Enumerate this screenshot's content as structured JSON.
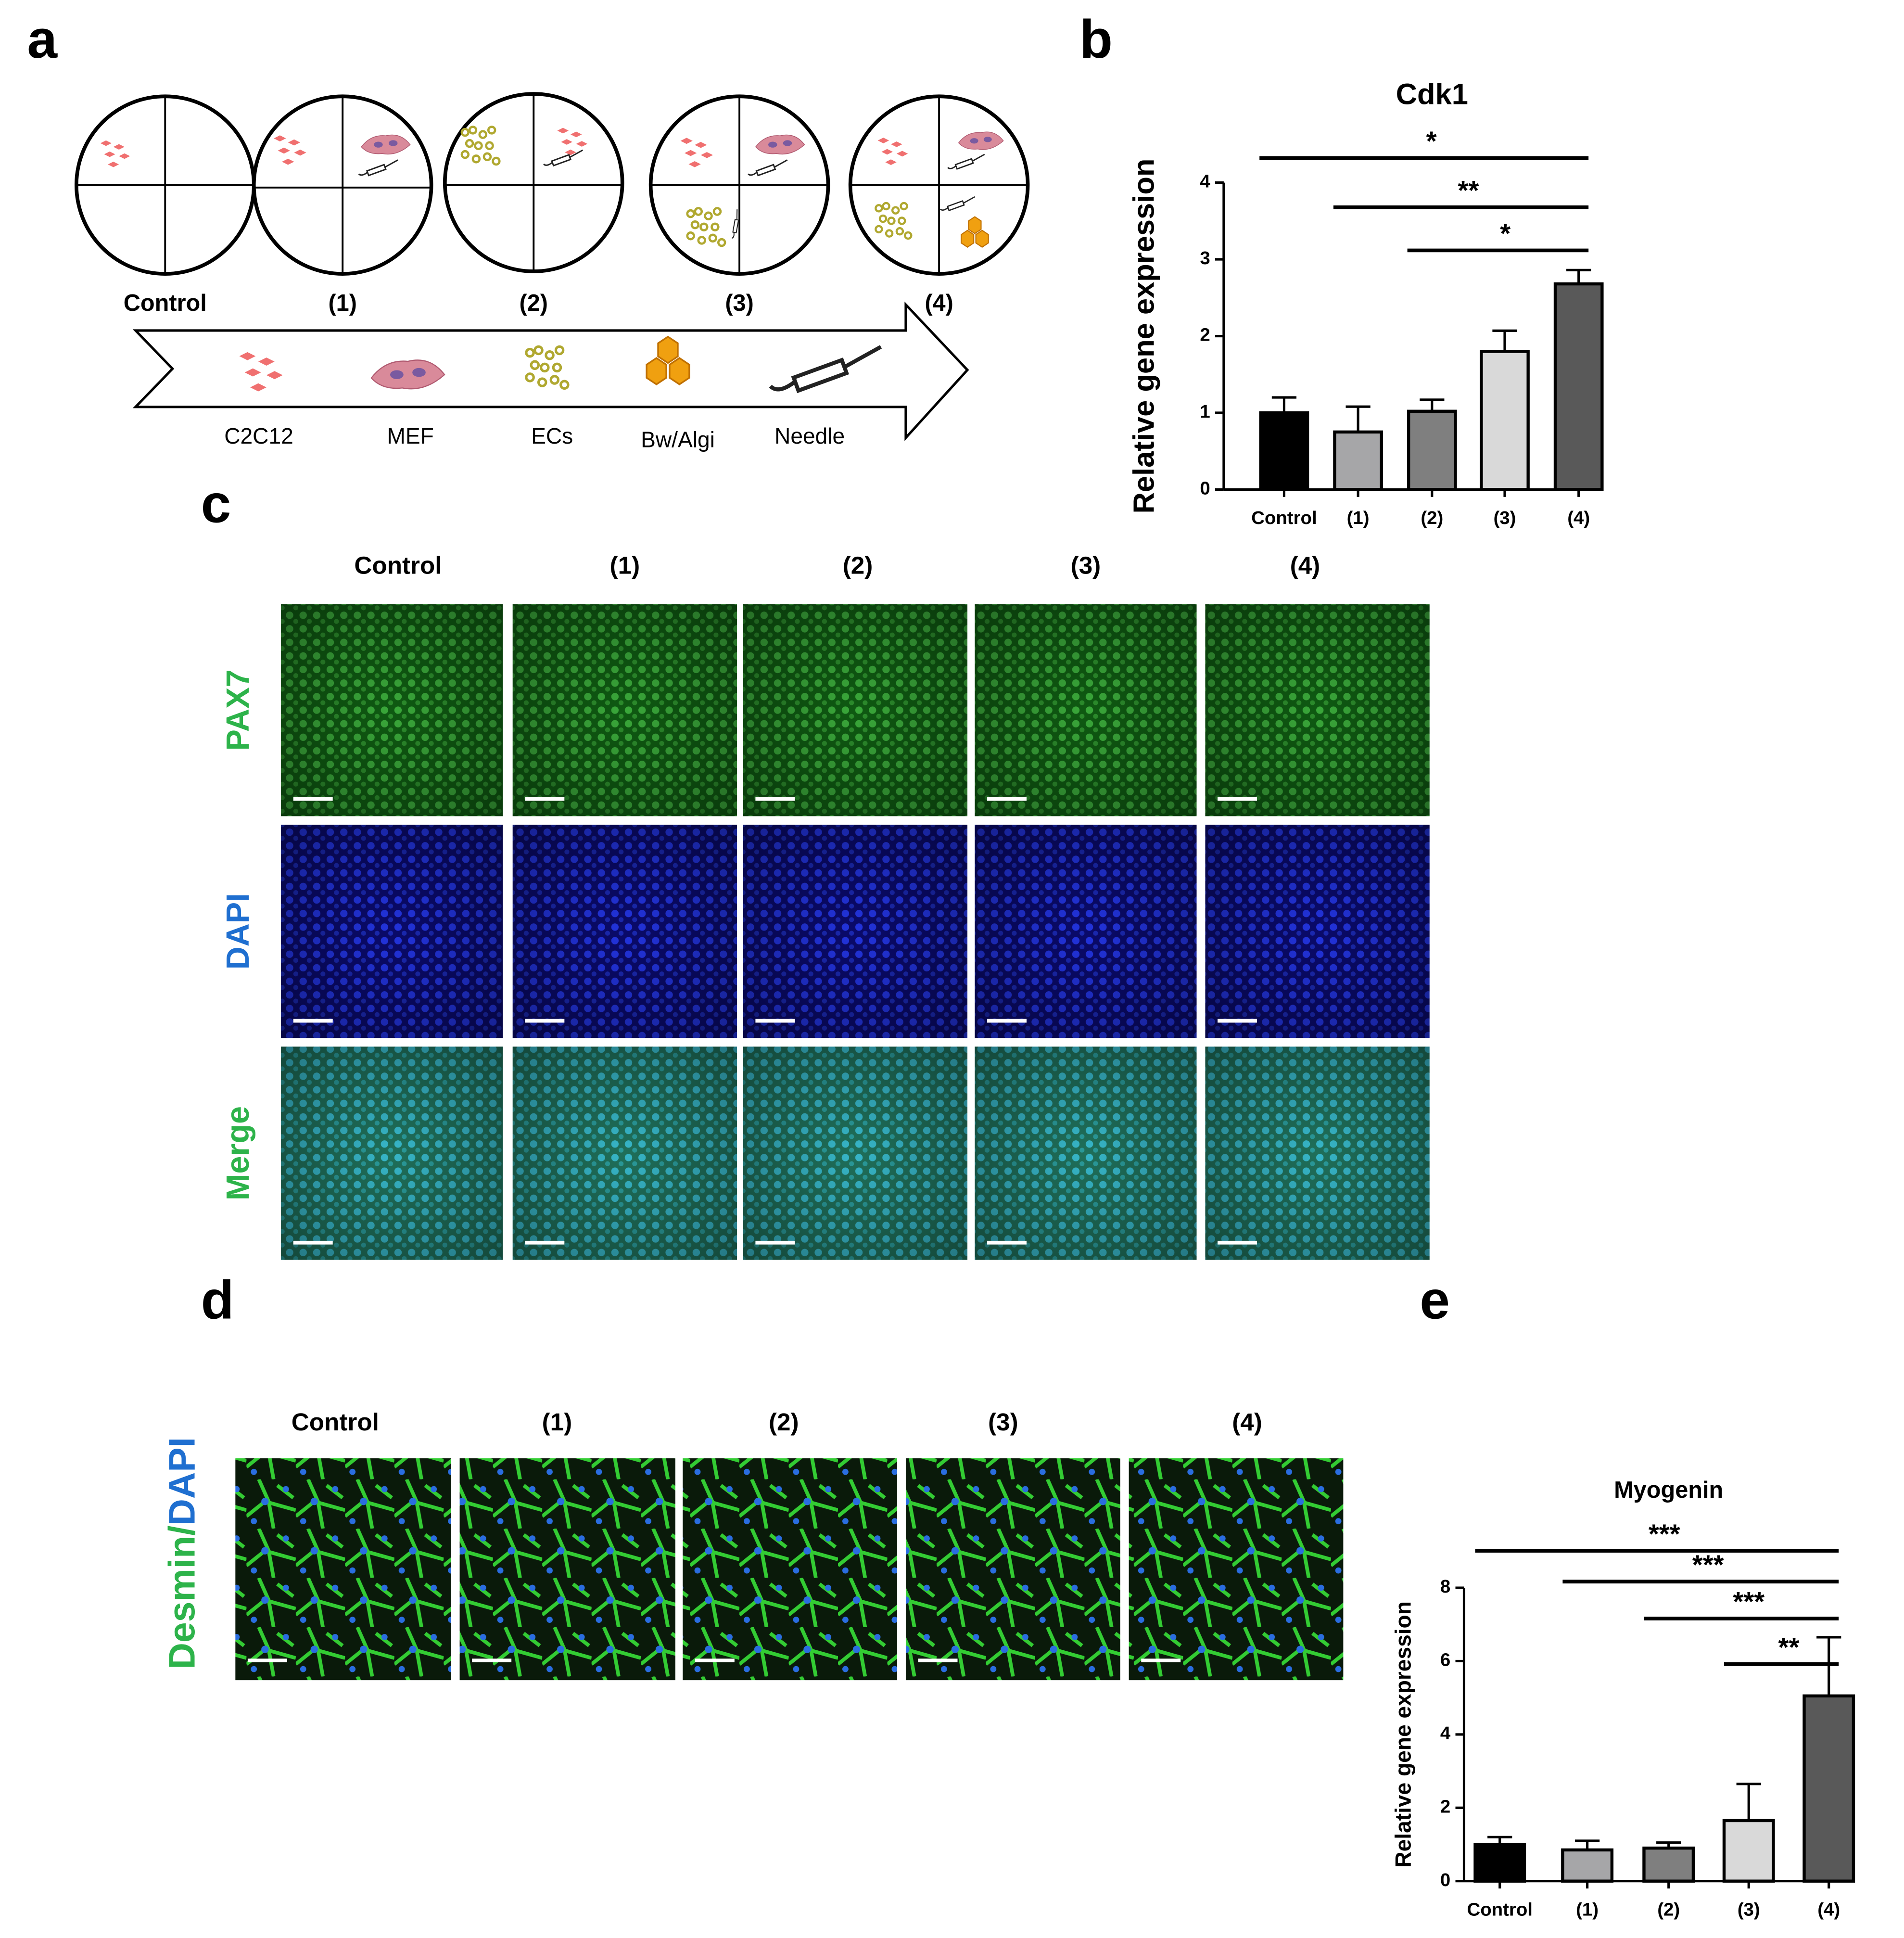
{
  "panel_labels": [
    "a",
    "b",
    "c",
    "d",
    "e"
  ],
  "panel_a": {
    "groups": [
      "Control",
      "(1)",
      "(2)",
      "(3)",
      "(4)"
    ],
    "components": [
      "C2C12",
      "MEF",
      "ECs",
      "Bw/Algi",
      "Needle"
    ]
  },
  "panel_c": {
    "columns": [
      "Control",
      "(1)",
      "(2)",
      "(3)",
      "(4)"
    ],
    "rows": [
      "PAX7",
      "DAPI",
      "Merge"
    ]
  },
  "panel_d": {
    "columns": [
      "Control",
      "(1)",
      "(2)",
      "(3)",
      "(4)"
    ],
    "stain": [
      "Desmin/",
      "DAPI"
    ]
  },
  "chart_data": [
    {
      "type": "bar",
      "title": "Cdk1",
      "y_label": "Relative gene expression",
      "categories": [
        "Control",
        "(1)",
        "(2)",
        "(3)",
        "(4)"
      ],
      "values": [
        1.0,
        0.75,
        1.02,
        1.8,
        2.68
      ],
      "errors": [
        0.2,
        0.33,
        0.15,
        0.27,
        0.18
      ],
      "colors": [
        "#000000",
        "#a6a6a8",
        "#7f7f7f",
        "#d9d9d9",
        "#595959"
      ],
      "ylim": [
        0,
        4
      ],
      "yticks": [
        0,
        1,
        2,
        3,
        4
      ],
      "significance": [
        {
          "from": "Control",
          "to": "(4)",
          "label": "*"
        },
        {
          "from": "(1)",
          "to": "(4)",
          "label": "**"
        },
        {
          "from": "(2)",
          "to": "(4)",
          "label": "*"
        }
      ]
    },
    {
      "type": "bar",
      "title": "Myogenin",
      "y_label": "Relative gene expression",
      "categories": [
        "Control",
        "(1)",
        "(2)",
        "(3)",
        "(4)"
      ],
      "values": [
        1.0,
        0.85,
        0.9,
        1.65,
        5.05
      ],
      "errors": [
        0.2,
        0.25,
        0.15,
        1.0,
        1.6
      ],
      "colors": [
        "#000000",
        "#a6a6a8",
        "#7f7f7f",
        "#d9d9d9",
        "#595959"
      ],
      "ylim": [
        0,
        8
      ],
      "yticks": [
        0,
        2,
        4,
        6,
        8
      ],
      "significance": [
        {
          "from": "Control",
          "to": "(4)",
          "label": "***"
        },
        {
          "from": "(1)",
          "to": "(4)",
          "label": "***"
        },
        {
          "from": "(2)",
          "to": "(4)",
          "label": "***"
        },
        {
          "from": "(3)",
          "to": "(4)",
          "label": "**"
        }
      ]
    }
  ]
}
